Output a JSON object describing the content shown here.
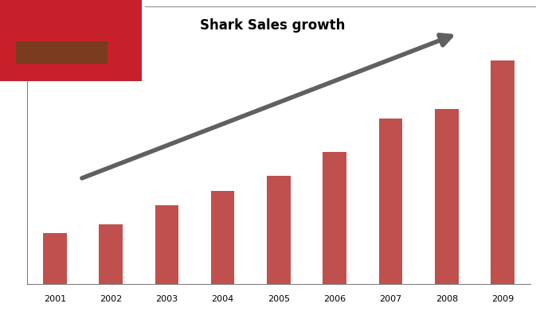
{
  "chart_data": {
    "type": "bar",
    "title": "Shark Sales growth",
    "categories": [
      "2001",
      "2002",
      "2003",
      "2004",
      "2005",
      "2006",
      "2007",
      "2008",
      "2009"
    ],
    "values": [
      64,
      75,
      99,
      117,
      136,
      166,
      208,
      220,
      281
    ],
    "color": "#c0504d",
    "ylim": [
      0,
      300
    ],
    "yticks": [],
    "grid": false,
    "tick_labels": "x"
  }
}
